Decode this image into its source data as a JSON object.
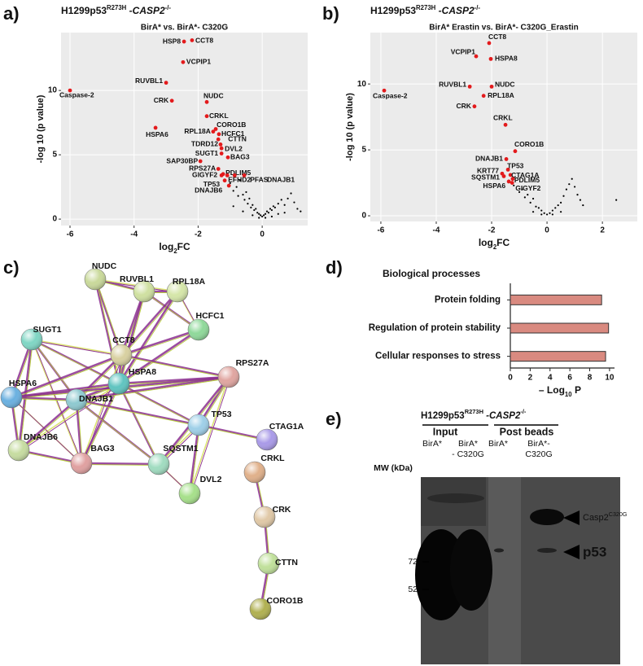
{
  "panels": [
    "a)",
    "b)",
    "c)",
    "d)",
    "e)"
  ],
  "chart_data": [
    {
      "type": "scatter",
      "heading": {
        "cell": "H1299p53",
        "allele": "R273H",
        "gene": " -CASP2",
        "genotype": "-/-"
      },
      "title": "BirA* vs. BirA*- C320G",
      "xlabel": {
        "text": "log",
        "sub": "2",
        "tail": "FC"
      },
      "ylabel": "-log 10 (p value)",
      "xlim": [
        -6.28,
        1.42
      ],
      "ylim": [
        -0.5,
        14.5
      ],
      "xticks": [
        -6,
        -4,
        -2,
        0
      ],
      "yticks": [
        0,
        5,
        10
      ],
      "grid": true,
      "color": "#e31a1c",
      "point_labels": [
        "HSP8",
        "CCT8",
        "VCPIP1",
        "RUVBL1",
        "Caspase-2",
        "NUDC",
        "CRK",
        "CRKL",
        "HSPA6",
        "CORO1B",
        "HCFC1",
        "RPL18A",
        "CTTN",
        "TDRD12",
        "DVL2",
        "SUGT1",
        "BAG3",
        "SAP30BP",
        "RPS27A",
        "PDLIM5",
        "GIGYF2",
        "EFHD2",
        "PFAS",
        "DNAJB1",
        "TP53",
        "DNAJB6"
      ],
      "x": [
        -2.44,
        -2.19,
        -2.47,
        -3.0,
        -6.0,
        -1.73,
        -2.82,
        -1.73,
        -3.33,
        -1.45,
        -1.35,
        -1.53,
        -1.37,
        -1.3,
        -1.27,
        -1.27,
        -1.07,
        -1.93,
        -1.37,
        -1.22,
        -1.27,
        -1.09,
        -0.86,
        -0.56,
        -1.17,
        -1.04
      ],
      "values": [
        13.8,
        13.9,
        12.2,
        10.6,
        10.0,
        9.1,
        9.2,
        8.0,
        7.1,
        7.0,
        6.6,
        6.8,
        6.2,
        5.8,
        5.5,
        5.1,
        4.8,
        4.5,
        3.9,
        3.5,
        3.4,
        3.4,
        3.4,
        3.4,
        3.0,
        2.6
      ],
      "background_color": "#000000",
      "background_x": [
        -1.0,
        -0.9,
        -0.8,
        -0.75,
        -0.7,
        -0.6,
        -0.55,
        -0.5,
        -0.45,
        -0.4,
        -0.35,
        -0.3,
        -0.25,
        -0.2,
        -0.15,
        -0.1,
        -0.05,
        0,
        0.05,
        0.1,
        0.15,
        0.2,
        0.25,
        0.3,
        0.35,
        0.4,
        0.5,
        0.6,
        0.7,
        0.8,
        0.9,
        1.0,
        1.1,
        -0.6,
        -0.3,
        -0.1,
        0.1,
        0.3,
        0.5,
        -0.9,
        0.7,
        1.2
      ],
      "background_values": [
        2.8,
        2.2,
        2.5,
        1.8,
        3.0,
        1.9,
        1.5,
        2.1,
        1.2,
        1.6,
        0.9,
        1.1,
        0.7,
        0.8,
        0.5,
        0.4,
        0.3,
        0.2,
        0.3,
        0.4,
        0.6,
        0.5,
        0.8,
        0.7,
        1.0,
        0.9,
        1.2,
        1.5,
        1.1,
        1.6,
        2.0,
        1.3,
        0.8,
        0.6,
        0.3,
        0.1,
        0.1,
        0.2,
        0.4,
        1.0,
        0.5,
        0.6
      ]
    },
    {
      "type": "scatter",
      "heading": {
        "cell": "H1299p53",
        "allele": "R273H",
        "gene": " -CASP2",
        "genotype": "-/-"
      },
      "title": "BirA* Erastin vs. BirA*- C320G_Erastin",
      "xlabel": {
        "text": "log",
        "sub": "2",
        "tail": "FC"
      },
      "ylabel": "-log 10 (p value)",
      "xlim": [
        -6.38,
        3.26
      ],
      "ylim": [
        -0.43,
        13.9
      ],
      "xticks": [
        -6,
        -4,
        -2,
        0,
        2
      ],
      "yticks": [
        0,
        5,
        10
      ],
      "grid": true,
      "color": "#e31a1c",
      "point_labels": [
        "CCT8",
        "VCPIP1",
        "HSPA8",
        "RUVBL1",
        "NUDC",
        "RPL18A",
        "Caspase-2",
        "CRK",
        "CRKL",
        "CORO1B",
        "DNAJB1",
        "TP53",
        "KRT77",
        "CTAG1A",
        "SQSTM1",
        "PDLIM5",
        "HSPA6",
        "GIGYF2"
      ],
      "x": [
        -2.09,
        -2.56,
        -2.03,
        -2.79,
        -2.0,
        -2.29,
        -5.88,
        -2.62,
        -1.5,
        -1.15,
        -1.47,
        -1.41,
        -1.62,
        -1.32,
        -1.56,
        -1.24,
        -1.38,
        -1.26
      ],
      "values": [
        13.1,
        12.1,
        11.9,
        9.8,
        9.8,
        9.1,
        9.5,
        8.3,
        6.9,
        4.9,
        4.3,
        3.5,
        3.2,
        3.1,
        3.0,
        2.8,
        2.6,
        2.5
      ],
      "background_color": "#000000",
      "background_x": [
        -1.2,
        -1.0,
        -0.9,
        -0.8,
        -0.7,
        -0.6,
        -0.5,
        -0.4,
        -0.3,
        -0.2,
        -0.1,
        0,
        0.1,
        0.2,
        0.3,
        0.4,
        0.5,
        0.6,
        0.7,
        0.8,
        0.9,
        1.0,
        1.1,
        1.2,
        1.3,
        -0.5,
        -0.2,
        0.2,
        0.5,
        2.5
      ],
      "background_values": [
        2.3,
        1.8,
        2.0,
        1.4,
        1.6,
        1.0,
        1.3,
        0.7,
        0.6,
        0.4,
        0.2,
        0.1,
        0.2,
        0.4,
        0.6,
        0.8,
        1.0,
        1.5,
        2.0,
        2.4,
        2.8,
        2.2,
        1.6,
        1.2,
        0.8,
        0.3,
        0.1,
        0.1,
        0.3,
        1.2
      ]
    },
    {
      "type": "hbar",
      "title": "Biological processes",
      "categories": [
        "Protein folding",
        "Regulation of protein stability",
        "Cellular responses to stress"
      ],
      "values": [
        9.2,
        9.9,
        9.6
      ],
      "color": "#d98a80",
      "xlabel": {
        "text": "– Log",
        "sub": "10",
        "tail": " P"
      },
      "xlim": [
        0,
        10.5
      ],
      "xticks": [
        0,
        2,
        4,
        6,
        8,
        10
      ]
    }
  ],
  "network": {
    "nodes": [
      "NUDC",
      "RUVBL1",
      "RPL18A",
      "HCFC1",
      "SUGT1",
      "CCT8",
      "HSPA8",
      "RPS27A",
      "HSPA6",
      "DNAJB1",
      "TP53",
      "CTAG1A",
      "DNAJB6",
      "BAG3",
      "SQSTM1",
      "DVL2",
      "CRKL",
      "CRK",
      "CTTN",
      "CORO1B"
    ]
  },
  "blot": {
    "heading": {
      "cell": "H1299p53",
      "allele": "R273H",
      "gene": " -CASP2",
      "genotype": "-/-"
    },
    "groups": [
      "Input",
      "Post beads"
    ],
    "lanes": [
      [
        "BirA*"
      ],
      [
        "BirA*",
        "- C320G"
      ],
      [
        "BirA*"
      ],
      [
        "BirA*-",
        "C320G"
      ]
    ],
    "mw_label": "MW (kDa)",
    "markers": [
      "72",
      "52"
    ],
    "bands": [
      {
        "name": "Casp2",
        "sup": "C320G"
      },
      {
        "name": "p53"
      }
    ]
  }
}
